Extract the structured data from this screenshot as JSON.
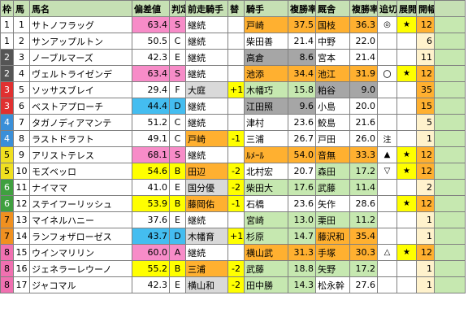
{
  "header": [
    "枠",
    "馬",
    "馬名",
    "偏差値",
    "判定",
    "前走騎手",
    "替",
    "騎手",
    "複勝率",
    "厩舎",
    "複勝率",
    "追切",
    "展開",
    "開幅",
    ""
  ],
  "colors": {
    "header_bg": "#c6e0b4",
    "waku": [
      "#ffffff",
      "#ffffff",
      "#555555",
      "#555555",
      "#e03030",
      "#e03030",
      "#3a8fd8",
      "#3a8fd8",
      "#f0e020",
      "#f0e020",
      "#40a040",
      "#40a040",
      "#f09020",
      "#f09020",
      "#f070b0",
      "#f070b0",
      "#f070b0"
    ],
    "pink": "#f78cc8",
    "cyan": "#44bdf0",
    "orange": "#ffb030",
    "grey": "#a6a6a6",
    "light_grey": "#d9d9d9",
    "light_green": "#c6e8b0",
    "yellow": "#ffff00",
    "cream": "#fff2cc",
    "white": "#ffffff"
  },
  "rows": [
    {
      "waku": "1",
      "uma": "1",
      "name": "サトノフラッグ",
      "score": "63.4",
      "grade": "S",
      "prev": "継続",
      "change": "",
      "jockey": "戸崎",
      "jrate": "37.5",
      "stable": "国枝",
      "srate": "36.3",
      "oikiri": "◎",
      "tenkai": "★",
      "kaifuku": "12",
      "last": ""
    },
    {
      "waku": "1",
      "uma": "2",
      "name": "サンアップルトン",
      "score": "50.5",
      "grade": "C",
      "prev": "継続",
      "change": "",
      "jockey": "柴田善",
      "jrate": "21.4",
      "stable": "中野",
      "srate": "22.0",
      "oikiri": "",
      "tenkai": "",
      "kaifuku": "6",
      "last": ""
    },
    {
      "waku": "2",
      "uma": "3",
      "name": "ノーブルマーズ",
      "score": "42.3",
      "grade": "E",
      "prev": "継続",
      "change": "",
      "jockey": "高倉",
      "jrate": "8.6",
      "stable": "宮本",
      "srate": "21.4",
      "oikiri": "",
      "tenkai": "",
      "kaifuku": "11",
      "last": ""
    },
    {
      "waku": "2",
      "uma": "4",
      "name": "ヴェルトライゼンデ",
      "score": "63.4",
      "grade": "S",
      "prev": "継続",
      "change": "",
      "jockey": "池添",
      "jrate": "34.4",
      "stable": "池江",
      "srate": "31.9",
      "oikiri": "〇",
      "tenkai": "★",
      "kaifuku": "12",
      "last": ""
    },
    {
      "waku": "3",
      "uma": "5",
      "name": "ソッサスブレイ",
      "score": "29.4",
      "grade": "F",
      "prev": "大庭",
      "change": "+1",
      "jockey": "木幡巧",
      "jrate": "15.8",
      "stable": "粕谷",
      "srate": "9.0",
      "oikiri": "",
      "tenkai": "",
      "kaifuku": "35",
      "last": ""
    },
    {
      "waku": "3",
      "uma": "6",
      "name": "ベストアプローチ",
      "score": "44.4",
      "grade": "D",
      "prev": "継続",
      "change": "",
      "jockey": "江田照",
      "jrate": "9.6",
      "stable": "小島",
      "srate": "20.0",
      "oikiri": "",
      "tenkai": "",
      "kaifuku": "15",
      "last": ""
    },
    {
      "waku": "4",
      "uma": "7",
      "name": "タガノディアマンテ",
      "score": "51.2",
      "grade": "C",
      "prev": "継続",
      "change": "",
      "jockey": "津村",
      "jrate": "23.6",
      "stable": "鮫島",
      "srate": "21.6",
      "oikiri": "",
      "tenkai": "",
      "kaifuku": "5",
      "last": ""
    },
    {
      "waku": "4",
      "uma": "8",
      "name": "ラストドラフト",
      "score": "49.1",
      "grade": "C",
      "prev": "戸崎",
      "change": "-1",
      "jockey": "三浦",
      "jrate": "26.7",
      "stable": "戸田",
      "srate": "26.0",
      "oikiri": "注",
      "tenkai": "",
      "kaifuku": "1",
      "last": ""
    },
    {
      "waku": "5",
      "uma": "9",
      "name": "アリストテレス",
      "score": "68.1",
      "grade": "S",
      "prev": "継続",
      "change": "",
      "jockey": "ﾙﾒｰﾙ",
      "jrate": "54.0",
      "stable": "音無",
      "srate": "33.3",
      "oikiri": "▲",
      "tenkai": "★",
      "kaifuku": "12",
      "last": ""
    },
    {
      "waku": "5",
      "uma": "10",
      "name": "モズベッロ",
      "score": "54.6",
      "grade": "B",
      "prev": "田辺",
      "change": "-2",
      "jockey": "北村宏",
      "jrate": "20.7",
      "stable": "森田",
      "srate": "17.2",
      "oikiri": "▽",
      "tenkai": "★",
      "kaifuku": "12",
      "last": ""
    },
    {
      "waku": "6",
      "uma": "11",
      "name": "ナイママ",
      "score": "41.0",
      "grade": "E",
      "prev": "国分優",
      "change": "-2",
      "jockey": "柴田大",
      "jrate": "17.6",
      "stable": "武藤",
      "srate": "11.4",
      "oikiri": "",
      "tenkai": "",
      "kaifuku": "2",
      "last": ""
    },
    {
      "waku": "6",
      "uma": "12",
      "name": "ステイフーリッシュ",
      "score": "53.9",
      "grade": "B",
      "prev": "藤岡佑",
      "change": "-1",
      "jockey": "石橋",
      "jrate": "23.6",
      "stable": "矢作",
      "srate": "28.6",
      "oikiri": "",
      "tenkai": "★",
      "kaifuku": "12",
      "last": ""
    },
    {
      "waku": "7",
      "uma": "13",
      "name": "マイネルハニー",
      "score": "37.6",
      "grade": "E",
      "prev": "継続",
      "change": "",
      "jockey": "宮崎",
      "jrate": "13.0",
      "stable": "栗田",
      "srate": "11.2",
      "oikiri": "",
      "tenkai": "",
      "kaifuku": "1",
      "last": ""
    },
    {
      "waku": "7",
      "uma": "14",
      "name": "ランフォザローゼス",
      "score": "43.7",
      "grade": "D",
      "prev": "木幡育",
      "change": "+1",
      "jockey": "杉原",
      "jrate": "14.7",
      "stable": "藤沢和",
      "srate": "35.4",
      "oikiri": "",
      "tenkai": "",
      "kaifuku": "1",
      "last": ""
    },
    {
      "waku": "8",
      "uma": "15",
      "name": "ウインマリリン",
      "score": "60.0",
      "grade": "A",
      "prev": "継続",
      "change": "",
      "jockey": "横山武",
      "jrate": "31.3",
      "stable": "手塚",
      "srate": "30.3",
      "oikiri": "△",
      "tenkai": "★",
      "kaifuku": "12",
      "last": ""
    },
    {
      "waku": "8",
      "uma": "16",
      "name": "ジェネラーレウーノ",
      "score": "55.2",
      "grade": "B",
      "prev": "三浦",
      "change": "-2",
      "jockey": "武藤",
      "jrate": "18.8",
      "stable": "矢野",
      "srate": "17.2",
      "oikiri": "",
      "tenkai": "",
      "kaifuku": "1",
      "last": ""
    },
    {
      "waku": "8",
      "uma": "17",
      "name": "ジャコマル",
      "score": "42.3",
      "grade": "E",
      "prev": "横山和",
      "change": "-2",
      "jockey": "田中勝",
      "jrate": "14.3",
      "stable": "松永幹",
      "srate": "27.6",
      "oikiri": "",
      "tenkai": "",
      "kaifuku": "1",
      "last": ""
    }
  ]
}
